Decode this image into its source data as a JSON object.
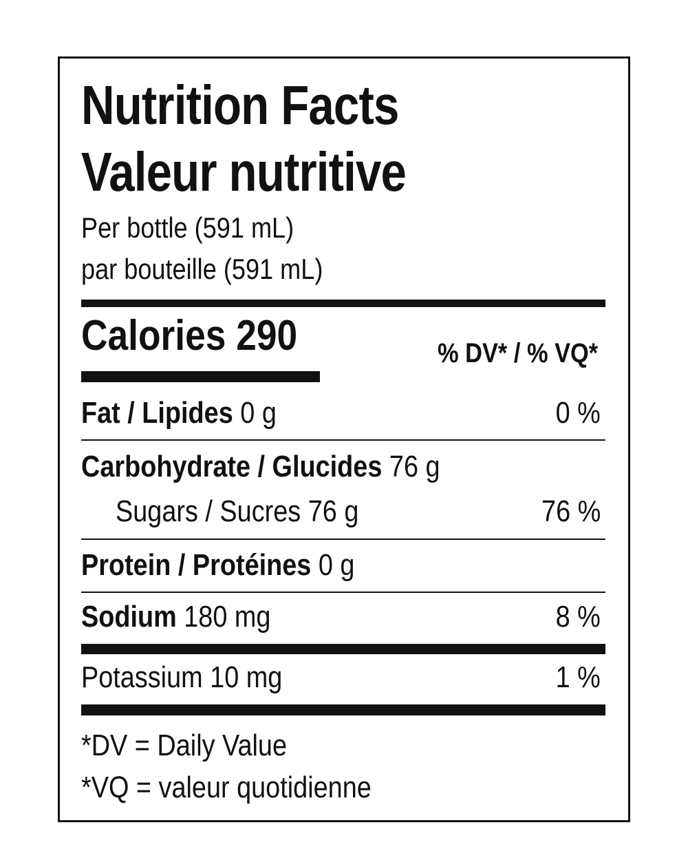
{
  "header": {
    "title_en": "Nutrition Facts",
    "title_fr": "Valeur nutritive",
    "serving_en": "Per bottle (591 mL)",
    "serving_fr": "par bouteille (591 mL)"
  },
  "calories": {
    "label": "Calories",
    "value": "290"
  },
  "dv_header": "% DV* / % VQ*",
  "nutrients": {
    "fat": {
      "label": "Fat / Lipides",
      "amount": "0 g",
      "dv": "0 %"
    },
    "carbohydrate": {
      "label": "Carbohydrate / Glucides",
      "amount": "76 g"
    },
    "sugars": {
      "label": "Sugars / Sucres",
      "amount": "76 g",
      "dv": "76 %"
    },
    "protein": {
      "label": "Protein / Protéines",
      "amount": "0 g"
    },
    "sodium": {
      "label": "Sodium",
      "amount": "180 mg",
      "dv": "8 %"
    },
    "potassium": {
      "label": "Potassium",
      "amount": "10 mg",
      "dv": "1 %"
    }
  },
  "footnotes": {
    "dv": "*DV = Daily Value",
    "vq": "*VQ = valeur quotidienne"
  },
  "colors": {
    "ink": "#111111",
    "background": "#ffffff"
  }
}
